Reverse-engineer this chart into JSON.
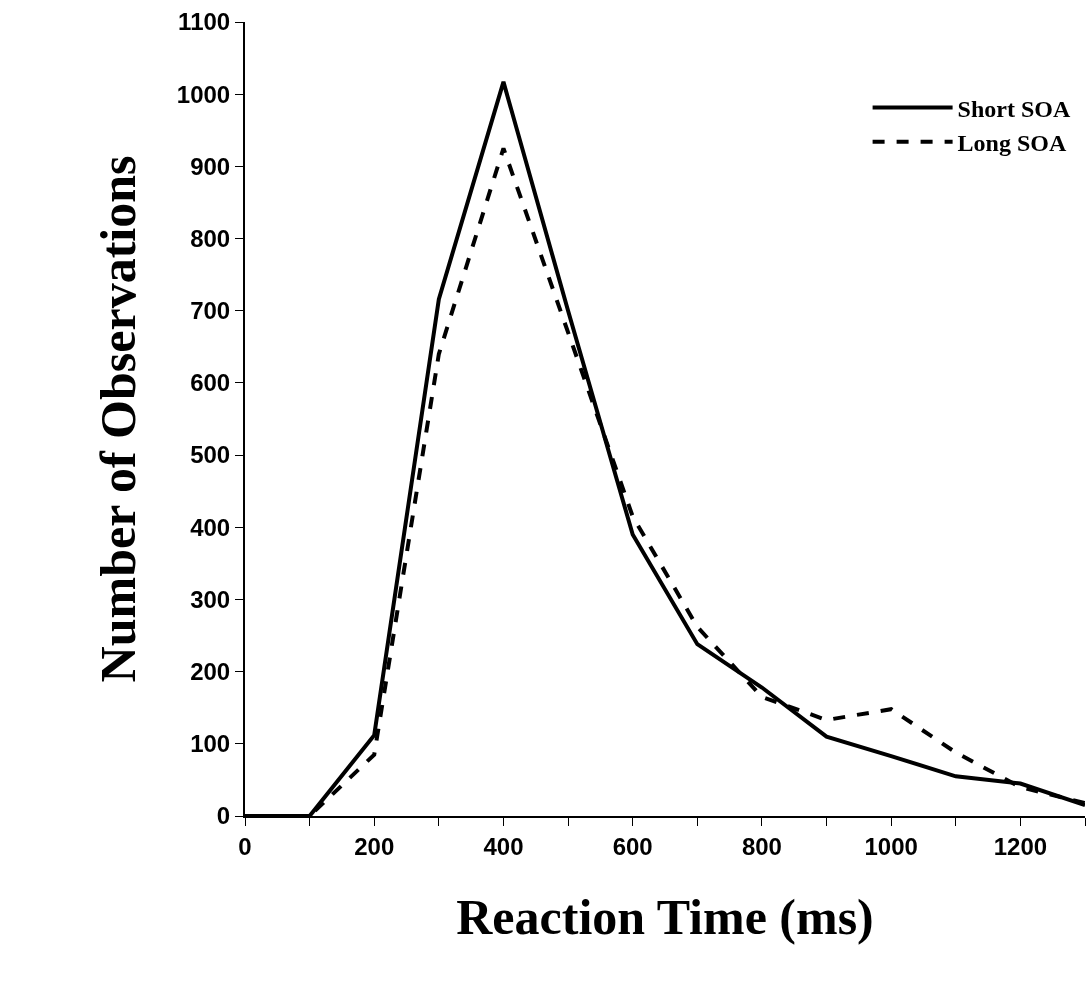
{
  "chart_data": {
    "type": "line",
    "xlabel": "Reaction Time (ms)",
    "ylabel": "Number of Observations",
    "x": [
      0,
      100,
      200,
      300,
      400,
      500,
      600,
      700,
      800,
      900,
      1000,
      1100,
      1200,
      1300
    ],
    "series": [
      {
        "name": "Short SOA",
        "color": "#000000",
        "line_style": "solid",
        "values": [
          0,
          0,
          112,
          716,
          1017,
          700,
          390,
          238,
          178,
          110,
          83,
          55,
          45,
          15
        ]
      },
      {
        "name": "Long SOA",
        "color": "#000000",
        "line_style": "dashed",
        "values": [
          0,
          0,
          85,
          640,
          925,
          670,
          415,
          262,
          165,
          133,
          148,
          88,
          40,
          18
        ]
      }
    ],
    "xlim": [
      0,
      1300
    ],
    "xticks": [
      0,
      200,
      400,
      600,
      800,
      1000,
      1200
    ],
    "ylim": [
      0,
      1100
    ],
    "yticks": [
      0,
      100,
      200,
      300,
      400,
      500,
      600,
      700,
      800,
      900,
      1000,
      1100
    ],
    "legend": "top right",
    "marker": "none"
  }
}
